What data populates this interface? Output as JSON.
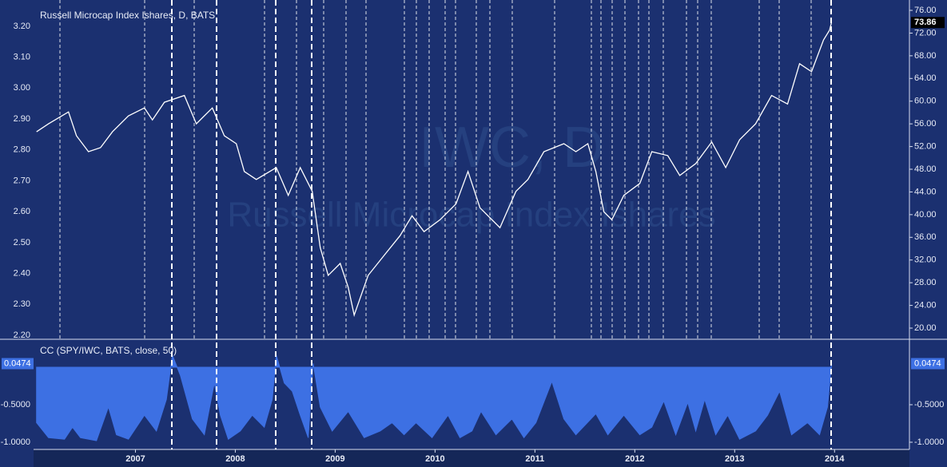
{
  "chart_data": [
    {
      "type": "line",
      "title": "Russell Microcap Index Ishares, D, BATS",
      "watermark": [
        "IWC, D",
        "Russell Microcap Index Ishares"
      ],
      "x": [
        2006.01,
        2006.13,
        2006.33,
        2006.41,
        2006.53,
        2006.65,
        2006.77,
        2006.93,
        2007.09,
        2007.17,
        2007.29,
        2007.49,
        2007.61,
        2007.77,
        2007.89,
        2008.01,
        2008.09,
        2008.21,
        2008.41,
        2008.53,
        2008.65,
        2008.77,
        2008.85,
        2008.93,
        2009.05,
        2009.13,
        2009.19,
        2009.33,
        2009.49,
        2009.65,
        2009.77,
        2009.89,
        2010.05,
        2010.21,
        2010.33,
        2010.45,
        2010.65,
        2010.81,
        2010.93,
        2011.09,
        2011.29,
        2011.41,
        2011.53,
        2011.61,
        2011.69,
        2011.77,
        2011.89,
        2012.05,
        2012.17,
        2012.33,
        2012.45,
        2012.61,
        2012.77,
        2012.91,
        2013.05,
        2013.21,
        2013.37,
        2013.53,
        2013.65,
        2013.77,
        2013.89,
        2013.95,
        2013.97
      ],
      "series": [
        {
          "color": "#ffffff",
          "axis": "y2",
          "values": [
            54.6,
            56.0,
            58.1,
            53.9,
            51.1,
            51.8,
            54.6,
            57.4,
            58.8,
            56.7,
            59.8,
            61.0,
            56.0,
            58.8,
            53.9,
            52.5,
            47.6,
            46.2,
            48.3,
            43.4,
            48.3,
            44.1,
            34.2,
            29.3,
            31.4,
            27.2,
            22.3,
            29.3,
            32.8,
            36.3,
            39.8,
            37.0,
            39.1,
            41.9,
            47.6,
            41.2,
            37.7,
            44.1,
            46.2,
            51.1,
            52.5,
            51.1,
            52.5,
            47.6,
            40.5,
            39.1,
            43.4,
            45.5,
            51.1,
            50.4,
            46.9,
            49.0,
            52.8,
            48.3,
            53.2,
            56.0,
            61.0,
            59.5,
            66.6,
            65.2,
            70.8,
            72.5,
            73.86
          ]
        }
      ],
      "xlim": [
        2005.98,
        2014.75
      ],
      "ylim": [
        2.187,
        3.285
      ],
      "yticks": [
        {
          "value": 2.2,
          "label": "2.20"
        },
        {
          "value": 2.3,
          "label": "2.30"
        },
        {
          "value": 2.4,
          "label": "2.40"
        },
        {
          "value": 2.5,
          "label": "2.50"
        },
        {
          "value": 2.6,
          "label": "2.60"
        },
        {
          "value": 2.7,
          "label": "2.70"
        },
        {
          "value": 2.8,
          "label": "2.80"
        },
        {
          "value": 2.9,
          "label": "2.90"
        },
        {
          "value": 3.0,
          "label": "3.00"
        },
        {
          "value": 3.1,
          "label": "3.10"
        },
        {
          "value": 3.2,
          "label": "3.20"
        }
      ],
      "y2lim": [
        18.03,
        77.83
      ],
      "y2ticks": [
        {
          "value": 20,
          "label": "20.00"
        },
        {
          "value": 24,
          "label": "24.00"
        },
        {
          "value": 28,
          "label": "28.00"
        },
        {
          "value": 32,
          "label": "32.00"
        },
        {
          "value": 36,
          "label": "36.00"
        },
        {
          "value": 40,
          "label": "40.00"
        },
        {
          "value": 44,
          "label": "44.00"
        },
        {
          "value": 48,
          "label": "48.00"
        },
        {
          "value": 52,
          "label": "52.00"
        },
        {
          "value": 56,
          "label": "56.00"
        },
        {
          "value": 60,
          "label": "60.00"
        },
        {
          "value": 64,
          "label": "64.00"
        },
        {
          "value": 68,
          "label": "68.00"
        },
        {
          "value": 72,
          "label": "72.00"
        },
        {
          "value": 76,
          "label": "76.00"
        }
      ]
    },
    {
      "type": "area",
      "title": "CC (SPY/IWC, BATS, close, 50)",
      "x": [
        2006.01,
        2006.13,
        2006.29,
        2006.37,
        2006.45,
        2006.61,
        2006.73,
        2006.81,
        2006.93,
        2007.09,
        2007.21,
        2007.31,
        2007.37,
        2007.45,
        2007.57,
        2007.69,
        2007.79,
        2007.85,
        2007.93,
        2008.05,
        2008.17,
        2008.29,
        2008.37,
        2008.41,
        2008.49,
        2008.57,
        2008.65,
        2008.73,
        2008.78,
        2008.85,
        2008.97,
        2009.13,
        2009.29,
        2009.45,
        2009.57,
        2009.69,
        2009.81,
        2009.97,
        2010.13,
        2010.25,
        2010.37,
        2010.46,
        2010.61,
        2010.77,
        2010.89,
        2011.01,
        2011.17,
        2011.29,
        2011.41,
        2011.61,
        2011.73,
        2011.89,
        2012.05,
        2012.17,
        2012.29,
        2012.41,
        2012.53,
        2012.61,
        2012.7,
        2012.81,
        2012.93,
        2013.05,
        2013.21,
        2013.33,
        2013.45,
        2013.57,
        2013.73,
        2013.85,
        2013.93,
        2013.97
      ],
      "series": [
        {
          "color": "#3d70e3",
          "values": [
            -0.74,
            -0.94,
            -0.96,
            -0.8,
            -0.94,
            -0.98,
            -0.53,
            -0.9,
            -0.96,
            -0.64,
            -0.85,
            -0.43,
            0.16,
            -0.11,
            -0.69,
            -0.9,
            -0.21,
            -0.64,
            -0.96,
            -0.85,
            -0.64,
            -0.8,
            -0.43,
            0.16,
            -0.21,
            -0.32,
            -0.64,
            -0.94,
            0.05,
            -0.53,
            -0.85,
            -0.59,
            -0.94,
            -0.85,
            -0.74,
            -0.9,
            -0.74,
            -0.94,
            -0.64,
            -0.94,
            -0.85,
            -0.59,
            -0.9,
            -0.69,
            -0.94,
            -0.74,
            -0.19,
            -0.69,
            -0.9,
            -0.62,
            -0.9,
            -0.64,
            -0.9,
            -0.8,
            -0.45,
            -0.9,
            -0.47,
            -0.85,
            -0.43,
            -0.9,
            -0.64,
            -0.96,
            -0.85,
            -0.64,
            -0.32,
            -0.9,
            -0.74,
            -0.9,
            -0.53,
            0.0474
          ]
        }
      ],
      "xlim": [
        2005.98,
        2014.75
      ],
      "xticks": [
        2007,
        2008,
        2009,
        2010,
        2011,
        2012,
        2013,
        2014
      ],
      "ylim": [
        -1.096,
        0.372
      ],
      "yticks": [
        {
          "value": -0.5,
          "label": "-0.5000"
        },
        {
          "value": -1,
          "label": "-1.0000"
        }
      ]
    }
  ]
}
